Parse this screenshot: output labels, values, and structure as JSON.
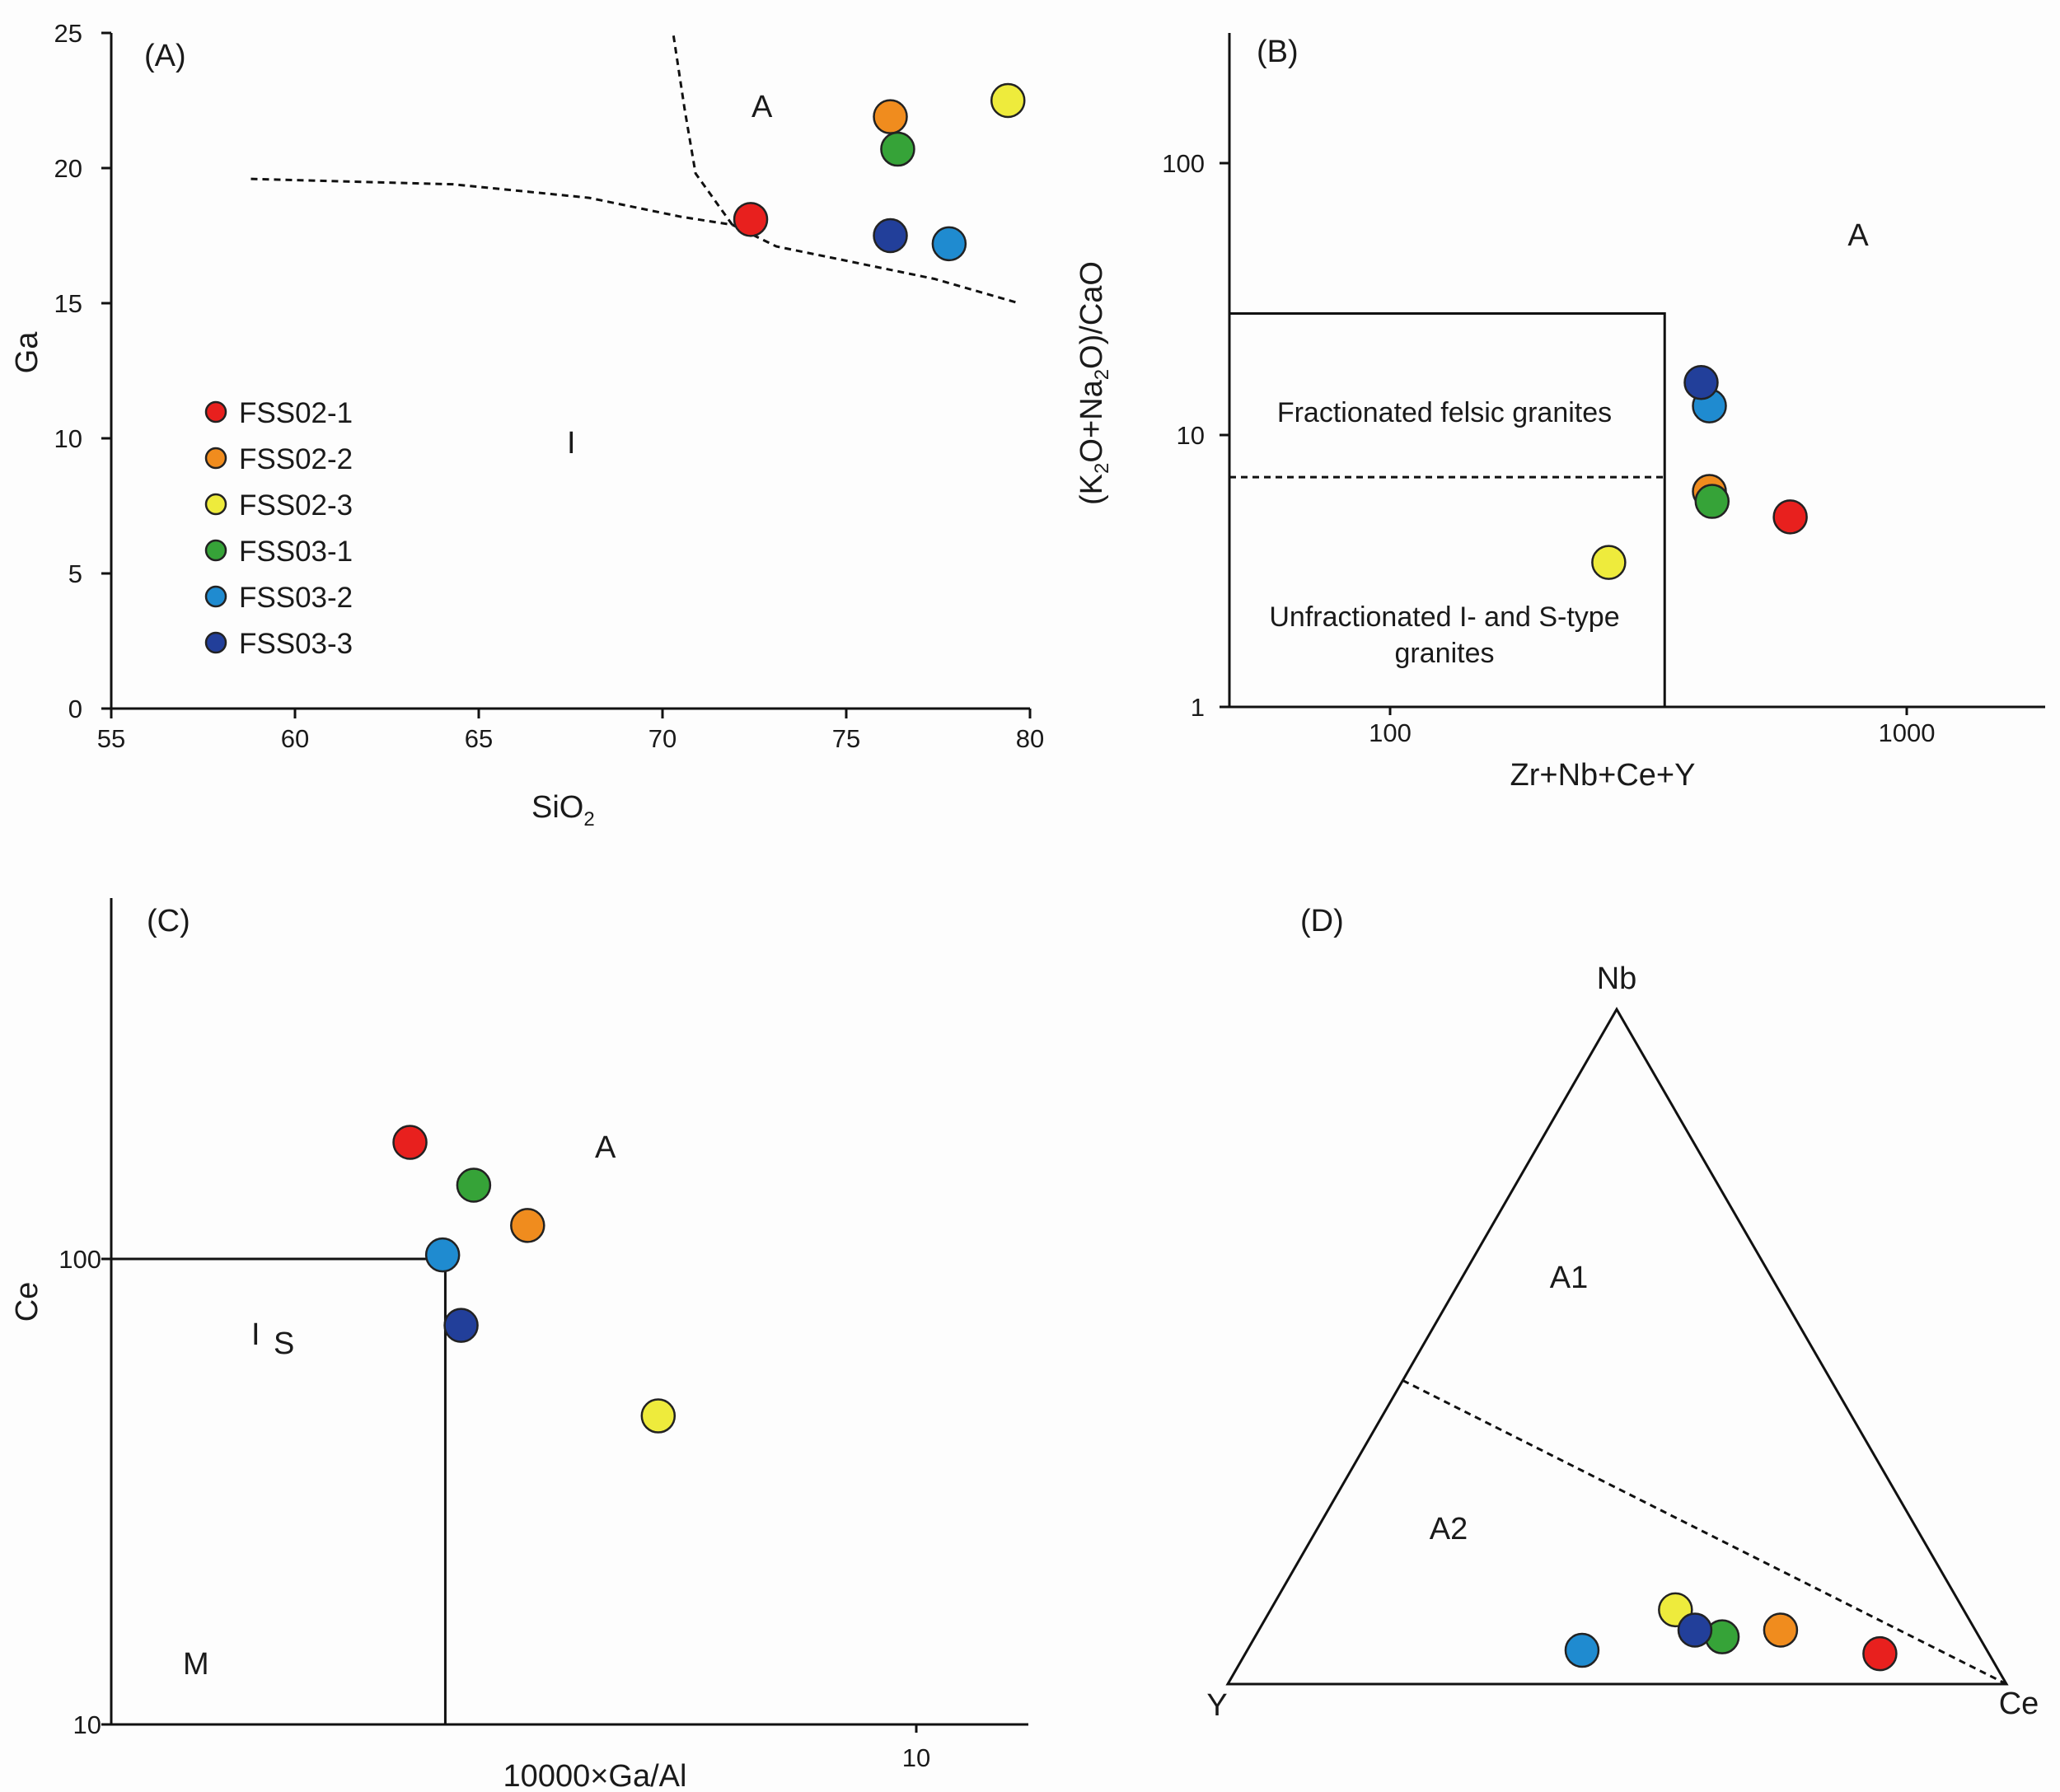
{
  "colors": {
    "FSS02-1": "#e8201e",
    "FSS02-2": "#f08c1e",
    "FSS02-3": "#eeeb3c",
    "FSS03-1": "#36a338",
    "FSS03-2": "#1f8bd0",
    "FSS03-3": "#223f9a"
  },
  "legend": [
    "FSS02-1",
    "FSS02-2",
    "FSS02-3",
    "FSS03-1",
    "FSS03-2",
    "FSS03-3"
  ],
  "chart_data": [
    {
      "panel": "(A)",
      "type": "scatter",
      "xlabel": "SiO2",
      "ylabel": "Ga",
      "xlim": [
        55,
        80
      ],
      "ylim": [
        0,
        25
      ],
      "xticks": [
        "55",
        "60",
        "65",
        "70",
        "75",
        "80"
      ],
      "yticks": [
        "0",
        "5",
        "10",
        "15",
        "20",
        "25"
      ],
      "fields": [
        "A",
        "I"
      ],
      "points": [
        {
          "sample": "FSS02-1",
          "x": 72.4,
          "y": 18.1
        },
        {
          "sample": "FSS02-2",
          "x": 76.2,
          "y": 21.9
        },
        {
          "sample": "FSS02-3",
          "x": 79.4,
          "y": 22.5
        },
        {
          "sample": "FSS03-1",
          "x": 76.4,
          "y": 20.7
        },
        {
          "sample": "FSS03-2",
          "x": 77.8,
          "y": 17.2
        },
        {
          "sample": "FSS03-3",
          "x": 76.2,
          "y": 17.5
        }
      ],
      "boundaries": [
        {
          "style": "dashed",
          "x": [
            58.8,
            64.3,
            68,
            70.5,
            71.9,
            73.1,
            74.9,
            77.4,
            79.7
          ],
          "y": [
            19.6,
            19.4,
            18.9,
            18.2,
            17.9,
            17.1,
            16.6,
            15.9,
            15.0
          ]
        },
        {
          "style": "dashed",
          "x": [
            70.3,
            70.6,
            70.9,
            71.9
          ],
          "y": [
            24.9,
            22.2,
            19.8,
            17.9
          ]
        }
      ]
    },
    {
      "panel": "(B)",
      "type": "scatter",
      "xlabel": "Zr+Nb+Ce+Y",
      "ylabel": "(K2O+Na2O)/CaO",
      "xscale": "log",
      "yscale": "log",
      "xlim": [
        50,
        2000
      ],
      "ylim": [
        1,
        300
      ],
      "xticks": [
        "100",
        "1000"
      ],
      "yticks": [
        "1",
        "10",
        "100"
      ],
      "fields": [
        "A",
        "Fractionated felsic granites",
        "Unfractionated I- and S-type granites"
      ],
      "points": [
        {
          "sample": "FSS02-1",
          "x": 595,
          "y": 5.0
        },
        {
          "sample": "FSS02-2",
          "x": 415,
          "y": 6.2
        },
        {
          "sample": "FSS02-3",
          "x": 265,
          "y": 3.4
        },
        {
          "sample": "FSS03-1",
          "x": 420,
          "y": 5.7
        },
        {
          "sample": "FSS03-2",
          "x": 415,
          "y": 12.8
        },
        {
          "sample": "FSS03-3",
          "x": 400,
          "y": 15.6
        }
      ],
      "boundaries": [
        {
          "style": "solid",
          "x": [
            50,
            340,
            340
          ],
          "y": [
            28,
            28,
            1
          ]
        },
        {
          "style": "dashed",
          "x": [
            50,
            340
          ],
          "y": [
            7,
            7
          ]
        }
      ]
    },
    {
      "panel": "(C)",
      "type": "scatter",
      "xlabel": "10000×Ga/Al",
      "ylabel": "Ce",
      "xscale": "log",
      "yscale": "log",
      "xlim": [
        1,
        12
      ],
      "ylim": [
        10,
        500
      ],
      "xticks": [
        "10"
      ],
      "yticks": [
        "10",
        "100"
      ],
      "fields": [
        "A",
        "I",
        "S",
        "M"
      ],
      "points": [
        {
          "sample": "FSS02-1",
          "x": 2.35,
          "y": 178
        },
        {
          "sample": "FSS02-2",
          "x": 3.29,
          "y": 118
        },
        {
          "sample": "FSS02-3",
          "x": 4.78,
          "y": 46
        },
        {
          "sample": "FSS03-1",
          "x": 2.82,
          "y": 144
        },
        {
          "sample": "FSS03-2",
          "x": 2.58,
          "y": 102
        },
        {
          "sample": "FSS03-3",
          "x": 2.72,
          "y": 72
        }
      ],
      "boundaries": [
        {
          "style": "solid",
          "x": [
            1,
            2.6,
            2.6
          ],
          "y": [
            100,
            100,
            10
          ]
        }
      ]
    },
    {
      "panel": "(D)",
      "type": "scatter",
      "apices": [
        "Nb",
        "Y",
        "Ce"
      ],
      "fields": [
        "A1",
        "A2"
      ],
      "points": [
        {
          "sample": "FSS02-1",
          "nb": 0.045,
          "y": 0.14,
          "ce": 0.815
        },
        {
          "sample": "FSS02-2",
          "nb": 0.08,
          "y": 0.25,
          "ce": 0.67
        },
        {
          "sample": "FSS02-3",
          "nb": 0.11,
          "y": 0.37,
          "ce": 0.52
        },
        {
          "sample": "FSS03-1",
          "nb": 0.07,
          "y": 0.33,
          "ce": 0.6
        },
        {
          "sample": "FSS03-2",
          "nb": 0.05,
          "y": 0.52,
          "ce": 0.43
        },
        {
          "sample": "FSS03-3",
          "nb": 0.08,
          "y": 0.36,
          "ce": 0.56
        }
      ],
      "boundaries": [
        {
          "style": "dashed",
          "from": {
            "nb": 0.45,
            "y": 0.55,
            "ce": 0
          },
          "to": {
            "nb": 0,
            "y": 0,
            "ce": 1
          }
        }
      ]
    }
  ]
}
